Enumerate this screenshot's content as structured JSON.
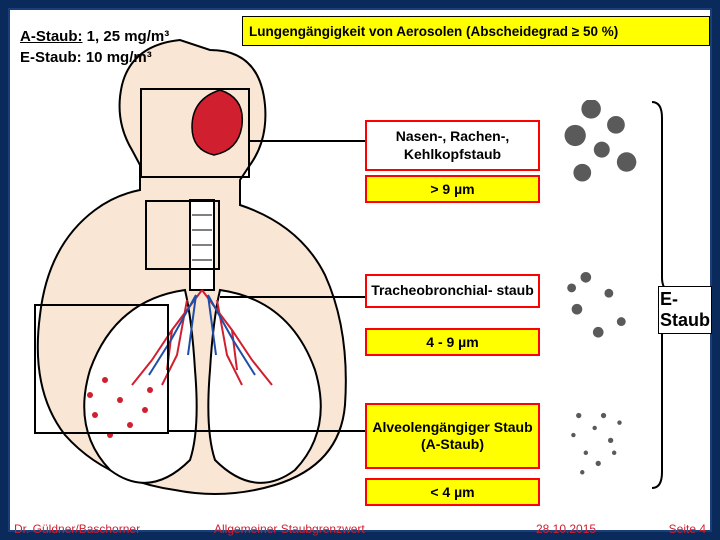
{
  "limits": {
    "a_label": "A-Staub:",
    "a_value": "1, 25 mg/m³",
    "e_label": "E-Staub:",
    "e_value": "10  mg/m³"
  },
  "title": "Lungengängigkeit von Aerosolen   (Abscheidegrad ≥ 50 %)",
  "categories": {
    "c1": {
      "label": "Nasen-, Rachen-, Kehlkopfstaub",
      "size": "> 9 µm"
    },
    "c2": {
      "label": "Tracheobronchial- staub",
      "size": "4 - 9 µm"
    },
    "c3": {
      "label": "Alveolengängiger Staub (A-Staub)",
      "size": "< 4 µm"
    }
  },
  "estaub_label": "E-Staub",
  "colors": {
    "slide_bg": "#0a2a5c",
    "highlight": "#ffff00",
    "border_red": "#ff0000",
    "particle": "#5a5a5a",
    "brace": "#000000",
    "lung_outline": "#000000",
    "vessel_blue": "#1e4ea8",
    "vessel_red": "#d01f2e",
    "skin": "#f4d9c2"
  },
  "particles": {
    "large": [
      [
        40,
        10,
        11
      ],
      [
        68,
        28,
        10
      ],
      [
        22,
        40,
        12
      ],
      [
        52,
        56,
        9
      ],
      [
        80,
        70,
        11
      ],
      [
        30,
        82,
        10
      ]
    ],
    "medium": [
      [
        34,
        200,
        6
      ],
      [
        60,
        218,
        5
      ],
      [
        24,
        236,
        6
      ],
      [
        74,
        250,
        5
      ],
      [
        48,
        262,
        6
      ],
      [
        18,
        212,
        5
      ]
    ],
    "small": [
      [
        26,
        356,
        3
      ],
      [
        44,
        370,
        2.5
      ],
      [
        62,
        384,
        3
      ],
      [
        34,
        398,
        2.5
      ],
      [
        54,
        356,
        3
      ],
      [
        72,
        364,
        2.5
      ],
      [
        20,
        378,
        2.5
      ],
      [
        48,
        410,
        3
      ],
      [
        66,
        398,
        2.5
      ],
      [
        30,
        420,
        2.5
      ]
    ]
  },
  "footer": {
    "author": "Dr. Güldner/Baschorner",
    "mid": "Allgemeiner Staubgrenzwert",
    "date": "28.10.2015",
    "page": "Seite 4"
  },
  "fonts": {
    "title_pt": 13.5,
    "category_pt": 14,
    "limits_pt": 15,
    "footer_pt": 12,
    "estaub_pt": 18
  }
}
